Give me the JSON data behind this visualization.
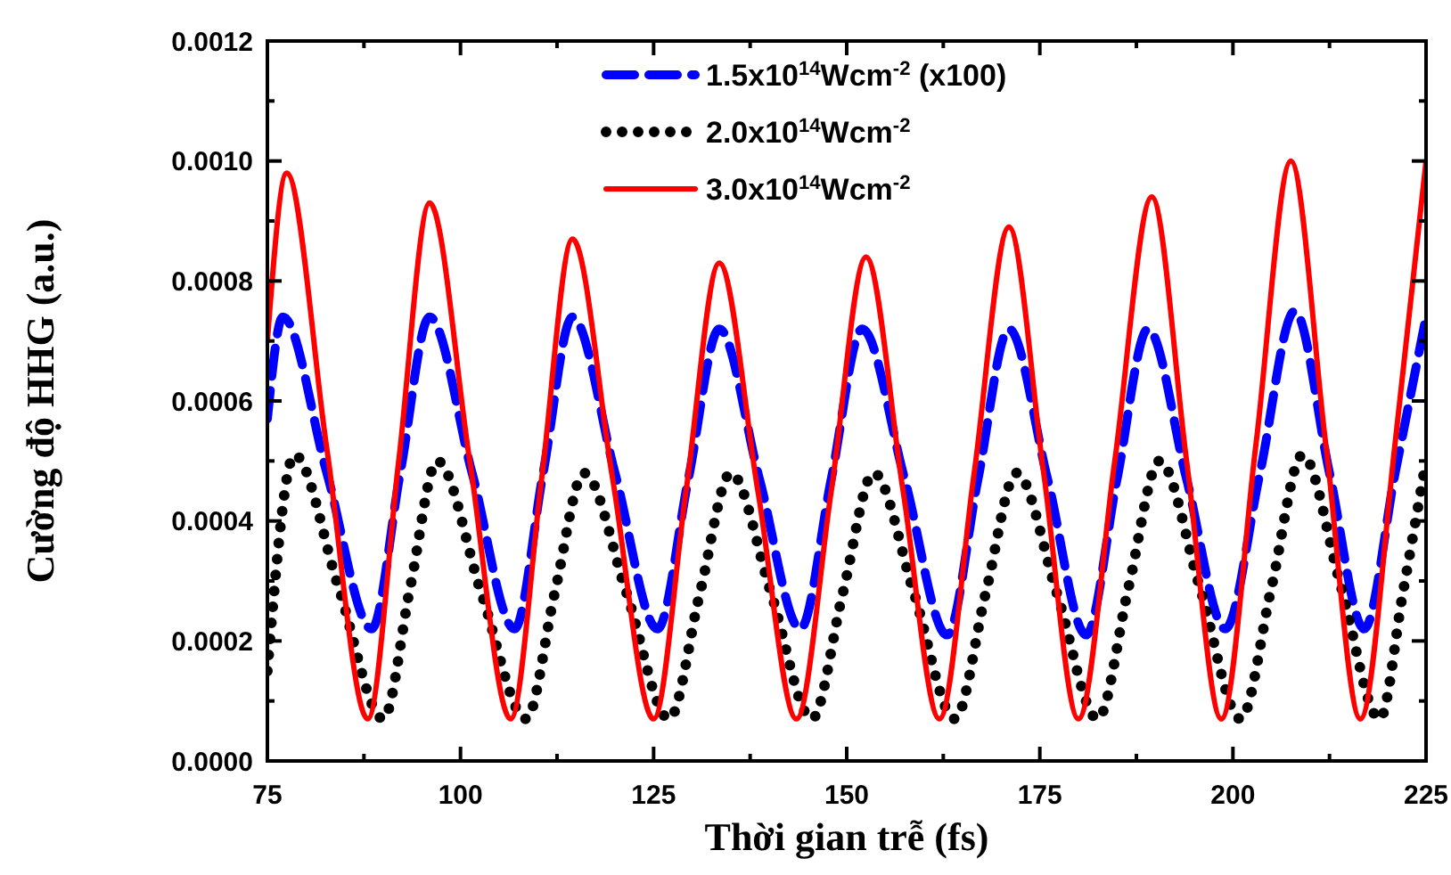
{
  "chart_data": {
    "type": "line",
    "xlabel": "Thời gian trễ (fs)",
    "ylabel": "Cường độ HHG (a.u.)",
    "xlim": [
      75,
      225
    ],
    "ylim": [
      0,
      0.0012
    ],
    "xticks": [
      75,
      {
        "value": 87.5,
        "label": null
      },
      100,
      {
        "value": 112.5,
        "label": null
      },
      125,
      {
        "value": 137.5,
        "label": null
      },
      150,
      {
        "value": 162.5,
        "label": null
      },
      175,
      {
        "value": 187.5,
        "label": null
      },
      200,
      {
        "value": 212.5,
        "label": null
      },
      225
    ],
    "yticks": [
      {
        "value": 0,
        "label": "0.0000"
      },
      {
        "value": 0.0001,
        "label": null
      },
      {
        "value": 0.0002,
        "label": "0.0002"
      },
      {
        "value": 0.0003,
        "label": null
      },
      {
        "value": 0.0004,
        "label": "0.0004"
      },
      {
        "value": 0.0005,
        "label": null
      },
      {
        "value": 0.0006,
        "label": "0.0006"
      },
      {
        "value": 0.0007,
        "label": null
      },
      {
        "value": 0.0008,
        "label": "0.0008"
      },
      {
        "value": 0.0009,
        "label": null
      },
      {
        "value": 0.001,
        "label": "0.0010"
      },
      {
        "value": 0.0011,
        "label": null
      },
      {
        "value": 0.0012,
        "label": "0.0012"
      }
    ],
    "legend": "top",
    "grid": false,
    "series": [
      {
        "name": "1.5x10$^{14}$Wcm$^{-2}$ (x100)",
        "color": "#0000ff",
        "line_style": "dashed",
        "x": [
          75,
          77,
          82.7,
          88.5,
          92.2,
          96,
          101.5,
          107,
          110.7,
          114.5,
          120,
          125.5,
          129.5,
          133.5,
          138.7,
          144,
          148,
          152,
          157.5,
          163,
          167,
          171,
          176,
          181,
          185,
          189,
          194,
          199,
          203.5,
          208,
          212.5,
          217,
          221,
          225
        ],
        "values": [
          0.00057,
          0.00074,
          0.00048,
          0.00022,
          0.00048,
          0.00074,
          0.00048,
          0.00022,
          0.00048,
          0.00074,
          0.00048,
          0.00022,
          0.00047,
          0.00072,
          0.00047,
          0.00022,
          0.00047,
          0.00072,
          0.00047,
          0.00021,
          0.00047,
          0.00072,
          0.00047,
          0.00021,
          0.00047,
          0.00072,
          0.00047,
          0.00022,
          0.00048,
          0.00075,
          0.00048,
          0.00022,
          0.00048,
          0.00074
        ]
      },
      {
        "name": "2.0x10$^{14}$Wcm$^{-2}$",
        "color": "#000000",
        "line_style": "dotted",
        "x": [
          75,
          78.5,
          84.2,
          90,
          93.5,
          97,
          102.7,
          108.5,
          112.2,
          116,
          121.5,
          127,
          131,
          135,
          140.2,
          145.5,
          149.5,
          153.5,
          158.7,
          164,
          168,
          172,
          177.2,
          182.5,
          186.5,
          190.5,
          195.7,
          201,
          205,
          209,
          214,
          219,
          222,
          225
        ],
        "values": [
          0.00015,
          0.00051,
          0.00029,
          7e-05,
          0.00029,
          0.0005,
          0.00028,
          7e-05,
          0.00028,
          0.00048,
          0.00028,
          7e-05,
          0.00028,
          0.00048,
          0.00028,
          7e-05,
          0.00028,
          0.00048,
          0.00028,
          7e-05,
          0.00028,
          0.00048,
          0.00028,
          7e-05,
          0.00029,
          0.0005,
          0.00029,
          7e-05,
          0.00029,
          0.00051,
          0.00029,
          7e-05,
          0.00028,
          0.0005
        ]
      },
      {
        "name": "3.0x10$^{14}$Wcm$^{-2}$",
        "color": "#ff0000",
        "line_style": "solid",
        "x": [
          75,
          77.5,
          82.7,
          88,
          92,
          96,
          101.2,
          106.5,
          110.5,
          114.5,
          119.7,
          125,
          129.2,
          133.5,
          138.5,
          143.5,
          148,
          152.5,
          157.3,
          162,
          166.5,
          171,
          175.5,
          180,
          184.7,
          189.5,
          194,
          198.5,
          203,
          207.5,
          212,
          216.5,
          221,
          225
        ],
        "values": [
          0.0007,
          0.00098,
          0.00052,
          7e-05,
          0.0005,
          0.00093,
          0.0005,
          7e-05,
          0.00047,
          0.00087,
          0.00047,
          7e-05,
          0.00045,
          0.00083,
          0.00045,
          7e-05,
          0.00045,
          0.00084,
          0.00045,
          7e-05,
          0.00048,
          0.00089,
          0.00048,
          7e-05,
          0.0005,
          0.00094,
          0.0005,
          7e-05,
          0.00053,
          0.001,
          0.00053,
          7e-05,
          0.00053,
          0.001
        ]
      }
    ]
  }
}
